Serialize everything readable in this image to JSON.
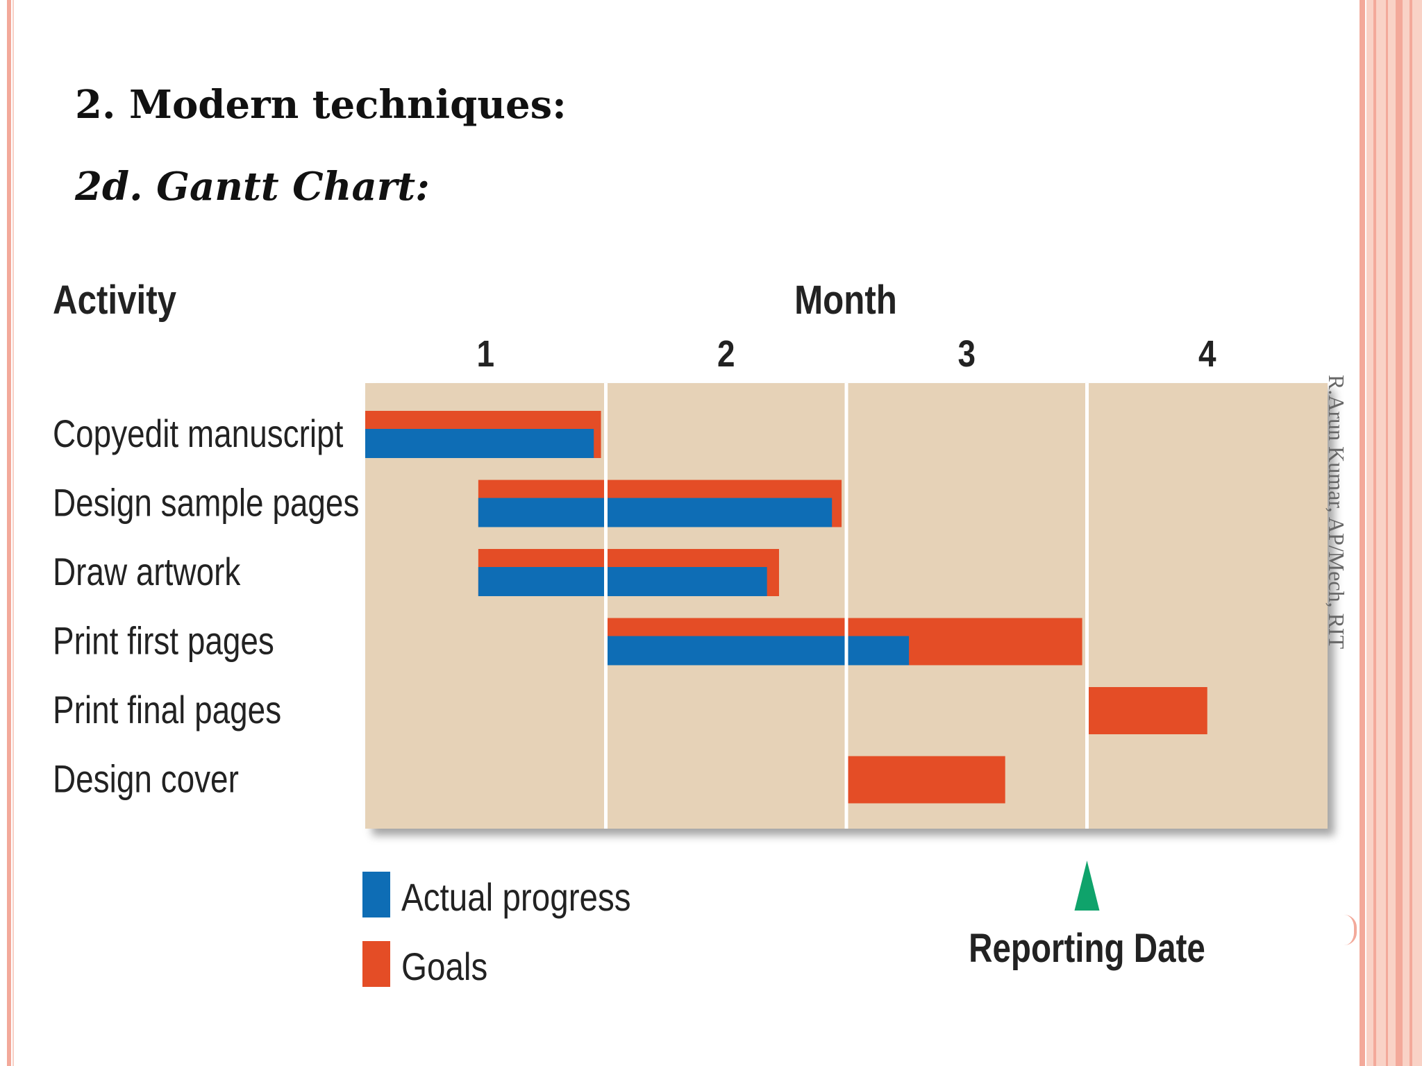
{
  "slide": {
    "heading": "2. Modern techniques:",
    "subheading": "2d. Gantt Chart:",
    "credit": "R.Arun Kumar, AP/Mech, RIT"
  },
  "colors": {
    "actual": "#0e6db5",
    "goal": "#e44d26",
    "chart_bg": "#e6d2b7",
    "marker": "#0fa36b",
    "border": "#f3a99a"
  },
  "chart_data": {
    "type": "gantt",
    "title": "",
    "activity_header": "Activity",
    "time_header": "Month",
    "months": [
      "1",
      "2",
      "3",
      "4"
    ],
    "xlim": [
      0,
      4
    ],
    "grid": true,
    "tasks": [
      {
        "name": "Copyedit manuscript",
        "goal": [
          0.0,
          0.98
        ],
        "actual": [
          0.0,
          0.95
        ]
      },
      {
        "name": "Design sample pages",
        "goal": [
          0.47,
          1.98
        ],
        "actual": [
          0.47,
          1.94
        ]
      },
      {
        "name": "Draw artwork",
        "goal": [
          0.47,
          1.72
        ],
        "actual": [
          0.47,
          1.67
        ]
      },
      {
        "name": "Print first pages",
        "goal": [
          1.0,
          2.98
        ],
        "actual": [
          1.0,
          2.26
        ]
      },
      {
        "name": "Print final pages",
        "goal": [
          3.0,
          3.5
        ],
        "actual": null
      },
      {
        "name": "Design cover",
        "goal": [
          2.0,
          2.66
        ],
        "actual": null
      }
    ],
    "legend": [
      {
        "label": "Actual progress",
        "key": "actual"
      },
      {
        "label": "Goals",
        "key": "goal"
      }
    ],
    "legend_position": "bottom-left",
    "reporting_date": {
      "label": "Reporting Date",
      "month": 3.0
    }
  }
}
